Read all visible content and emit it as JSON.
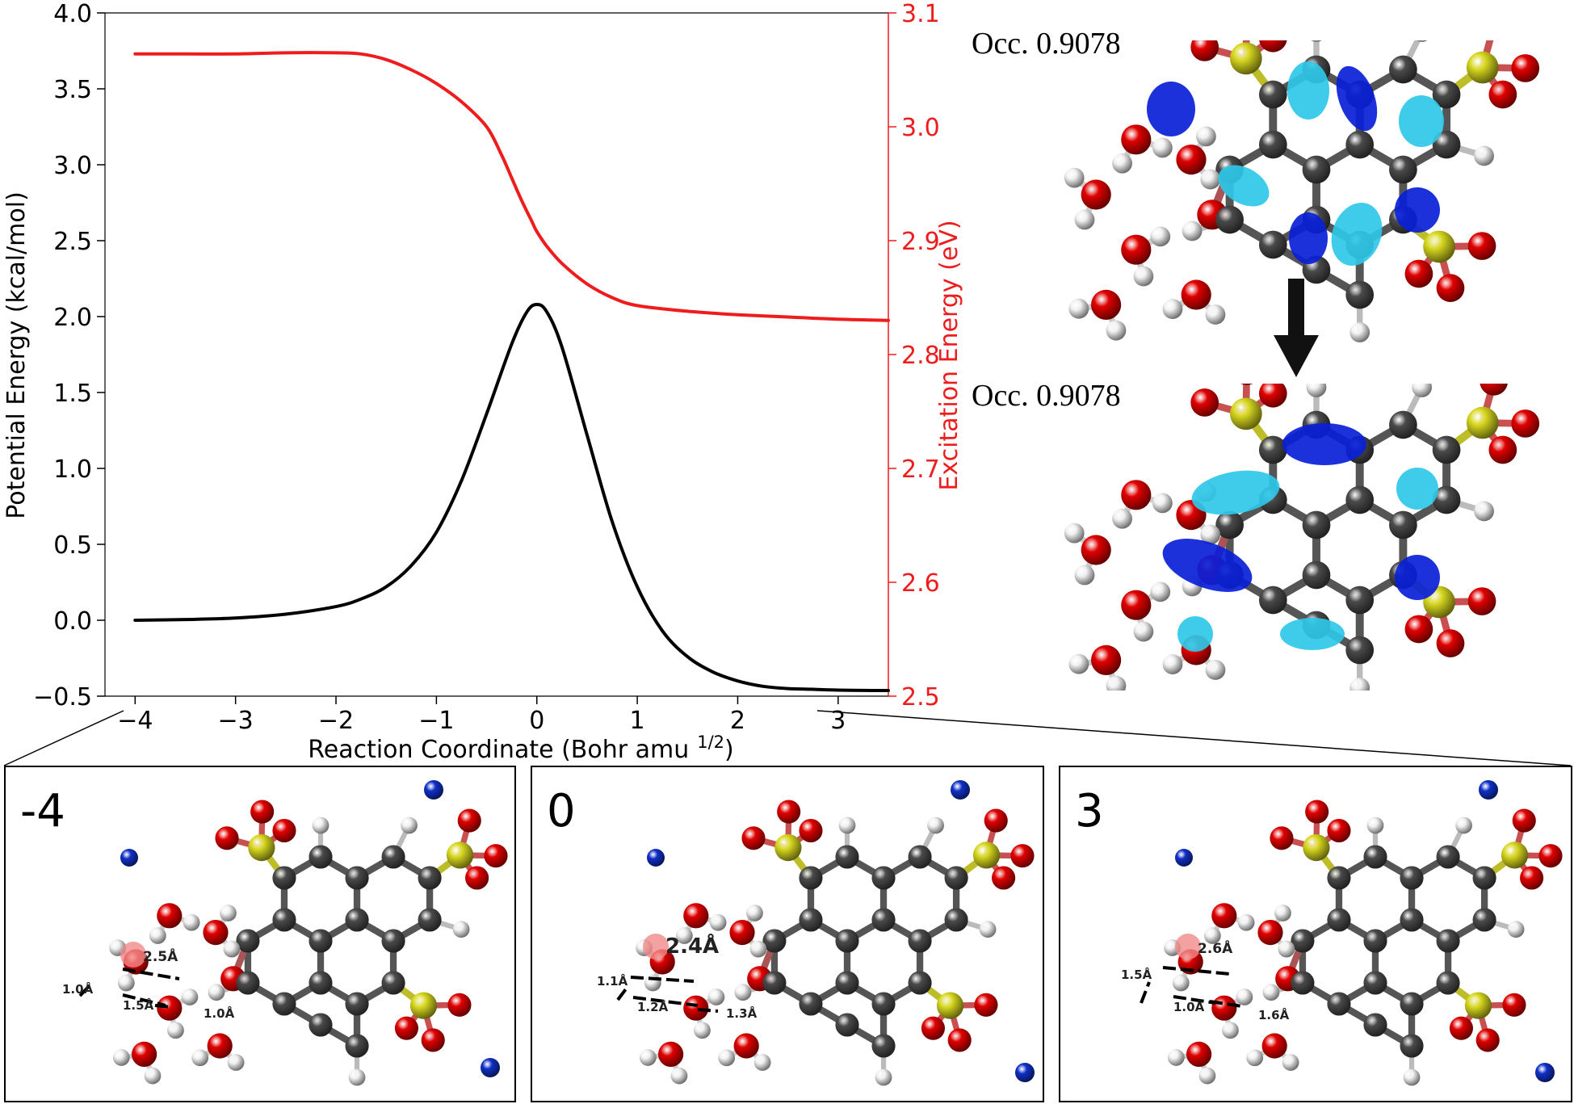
{
  "chart_data": {
    "type": "line",
    "xlabel": "Reaction Coordinate (Bohr amu",
    "xlabel_sup": "1/2",
    "ylabel_left": "Potential Energy (kcal/mol)",
    "ylabel_right": "Excitation Energy (eV)",
    "xlim": [
      -4.3,
      3.5
    ],
    "ylim_left": [
      -0.5,
      4.0
    ],
    "ylim_right": [
      2.5,
      3.1
    ],
    "x_ticks": [
      -4,
      -3,
      -2,
      -1,
      0,
      1,
      2,
      3
    ],
    "x_tick_labels": [
      "−4",
      "−3",
      "−2",
      "−1",
      "0",
      "1",
      "2",
      "3"
    ],
    "y_left_ticks": [
      -0.5,
      0.0,
      0.5,
      1.0,
      1.5,
      2.0,
      2.5,
      3.0,
      3.5,
      4.0
    ],
    "y_left_tick_labels": [
      "−0.5",
      "0.0",
      "0.5",
      "1.0",
      "1.5",
      "2.0",
      "2.5",
      "3.0",
      "3.5",
      "4.0"
    ],
    "y_right_ticks": [
      2.5,
      2.6,
      2.7,
      2.8,
      2.9,
      3.0,
      3.1
    ],
    "y_right_tick_labels": [
      "2.5",
      "2.6",
      "2.7",
      "2.8",
      "2.9",
      "3.0",
      "3.1"
    ],
    "series": [
      {
        "axis": "left",
        "color": "#000000",
        "x": [
          -4.0,
          -3.5,
          -3.0,
          -2.5,
          -2.0,
          -1.75,
          -1.5,
          -1.25,
          -1.0,
          -0.75,
          -0.5,
          -0.25,
          -0.1,
          0.0,
          0.1,
          0.25,
          0.5,
          0.75,
          1.0,
          1.25,
          1.5,
          1.75,
          2.0,
          2.25,
          2.5,
          2.75,
          3.0,
          3.25,
          3.5
        ],
        "y": [
          0.0,
          0.005,
          0.015,
          0.04,
          0.09,
          0.14,
          0.22,
          0.36,
          0.58,
          0.92,
          1.36,
          1.82,
          2.03,
          2.08,
          2.03,
          1.8,
          1.22,
          0.65,
          0.22,
          -0.07,
          -0.24,
          -0.34,
          -0.4,
          -0.435,
          -0.45,
          -0.455,
          -0.46,
          -0.462,
          -0.463
        ]
      },
      {
        "axis": "right",
        "color": "#ee1c1c",
        "x": [
          -4.0,
          -3.5,
          -3.0,
          -2.5,
          -2.0,
          -1.75,
          -1.5,
          -1.25,
          -1.0,
          -0.75,
          -0.5,
          -0.35,
          -0.25,
          -0.15,
          -0.05,
          0.0,
          0.1,
          0.25,
          0.5,
          0.75,
          1.0,
          1.5,
          2.0,
          2.5,
          3.0,
          3.5
        ],
        "y": [
          3.064,
          3.064,
          3.064,
          3.065,
          3.065,
          3.064,
          3.059,
          3.05,
          3.038,
          3.022,
          3.0,
          2.975,
          2.955,
          2.935,
          2.917,
          2.908,
          2.895,
          2.88,
          2.862,
          2.85,
          2.843,
          2.838,
          2.835,
          2.833,
          2.831,
          2.83
        ]
      }
    ]
  },
  "orbitals": {
    "top_label": "Occ. 0.9078",
    "bottom_label": "Occ. 0.9078"
  },
  "panels": [
    {
      "label": "-4",
      "distances": [
        "2.5Å",
        "1.0Å",
        "1.5Å",
        "1.0Å"
      ]
    },
    {
      "label": "0",
      "distances": [
        "2.4Å",
        "1.1Å",
        "1.2Å",
        "1.3Å"
      ]
    },
    {
      "label": "3",
      "distances": [
        "2.6Å",
        "1.5Å",
        "1.0Å",
        "1.6Å"
      ]
    }
  ],
  "colors": {
    "left_axis": "#000000",
    "right_axis": "#ee1c1c",
    "carbon": "#4a4a4a",
    "oxygen": "#e00000",
    "hydrogen": "#f2f2f2",
    "sulfur": "#d8d820",
    "sodium": "#1030c8",
    "orbital_dark": "#0a1fd8",
    "orbital_light": "#2ec8e8"
  }
}
